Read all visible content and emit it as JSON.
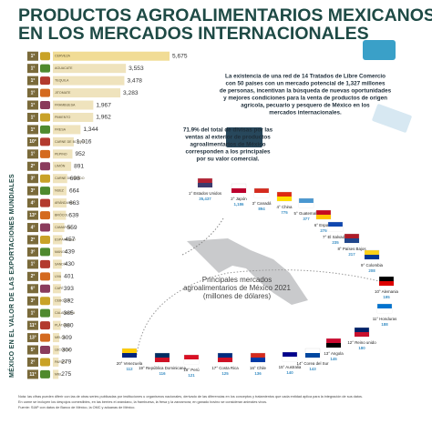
{
  "header": {
    "title_line1": "PRODUCTOS AGROALIMENTARIOS MEXICANOS",
    "title_line2": "EN LOS MERCADOS INTERNACIONALES"
  },
  "side_label": "MÉXICO EN EL VALOR DE LAS EXPORTACIONES MUNDIALES",
  "products": [
    {
      "rank": "1°",
      "name": "CERVEZA",
      "value": 5675,
      "value_label": "5,675"
    },
    {
      "rank": "1°",
      "name": "AGUACATE",
      "value": 3553,
      "value_label": "3,553"
    },
    {
      "rank": "1°",
      "name": "TEQUILA",
      "value": 3478,
      "value_label": "3,478"
    },
    {
      "rank": "1°",
      "name": "JITOMATE",
      "value": 3283,
      "value_label": "3,283"
    },
    {
      "rank": "1°",
      "name": "FRAMBUESA",
      "value": 1967,
      "value_label": "1,967"
    },
    {
      "rank": "1°",
      "name": "PIMIENTO",
      "value": 1962,
      "value_label": "1,962"
    },
    {
      "rank": "1°",
      "name": "FRESA",
      "value": 1344,
      "value_label": "1,344"
    },
    {
      "rank": "10°",
      "name": "CARNE DE BOVINO",
      "value": 1016,
      "value_label": "1,016"
    },
    {
      "rank": "1°",
      "name": "PEPINO",
      "value": 952,
      "value_label": "952"
    },
    {
      "rank": "2°",
      "name": "LIMÓN",
      "value": 891,
      "value_label": "891"
    },
    {
      "rank": "3°",
      "name": "CARNE DE CERDO",
      "value": 698,
      "value_label": "698"
    },
    {
      "rank": "3°",
      "name": "NUEZ",
      "value": 664,
      "value_label": "664"
    },
    {
      "rank": "4°",
      "name": "ARÁNDANO",
      "value": 663,
      "value_label": "663"
    },
    {
      "rank": "13°",
      "name": "BRÓCOLI",
      "value": 639,
      "value_label": "639"
    },
    {
      "rank": "4°",
      "name": "CAMARÓN",
      "value": 559,
      "value_label": "559"
    },
    {
      "rank": "2°",
      "name": "ESPÁRRAGO",
      "value": 457,
      "value_label": "457"
    },
    {
      "rank": "3°",
      "name": "MANGO",
      "value": 439,
      "value_label": "439"
    },
    {
      "rank": "1°",
      "name": "SANDÍA",
      "value": 430,
      "value_label": "430"
    },
    {
      "rank": "2°",
      "name": "UVA",
      "value": 401,
      "value_label": "401"
    },
    {
      "rank": "6°",
      "name": "CAFÉ",
      "value": 393,
      "value_label": "393"
    },
    {
      "rank": "3°",
      "name": "CEBOLLA",
      "value": 392,
      "value_label": "392"
    },
    {
      "rank": "1°",
      "name": "CALABACITA",
      "value": 385,
      "value_label": "385"
    },
    {
      "rank": "11°",
      "name": "PLÁTANO",
      "value": 380,
      "value_label": "380"
    },
    {
      "rank": "13°",
      "name": "MELÓN",
      "value": 309,
      "value_label": "309"
    },
    {
      "rank": "5°",
      "name": "LECHUGA",
      "value": 300,
      "value_label": "300"
    },
    {
      "rank": "2°",
      "name": "PAPAYA",
      "value": 279,
      "value_label": "279"
    },
    {
      "rank": "11°",
      "name": "MIEL",
      "value": 275,
      "value_label": "275"
    }
  ],
  "info_treaties": [
    "La existencia de una red de 14 Tratados de Libre Comercio",
    "con 50 países con un mercado potencial de 1,327 millones",
    "de personas, incentivan la búsqueda de nuevas oportunidades",
    "y mejores condiciones para la venta de productos de origen",
    "agrícola, pecuario y pesquero de México en los",
    "mercados internacionales."
  ],
  "info_share": [
    "71.9% del total de divisas por las",
    "ventas al exterior de productos",
    "agroalimentarios de México",
    "corresponden a los principales",
    "por su valor comercial."
  ],
  "markets_title": [
    "Principales mercados",
    "agroalimentarios de México 2021",
    "(millones de dólares)"
  ],
  "markets": [
    {
      "rank": "1°",
      "name": "Estados Unidos",
      "value_label": "35,437"
    },
    {
      "rank": "2°",
      "name": "Japón",
      "value_label": "1,186"
    },
    {
      "rank": "3°",
      "name": "Canadá",
      "value_label": "894"
    },
    {
      "rank": "4°",
      "name": "China",
      "value_label": "775"
    },
    {
      "rank": "5°",
      "name": "Guatemala",
      "value_label": "377"
    },
    {
      "rank": "6°",
      "name": "España",
      "value_label": "275"
    },
    {
      "rank": "7°",
      "name": "El Salvador",
      "value_label": "235"
    },
    {
      "rank": "8°",
      "name": "Países Bajos",
      "value_label": "217"
    },
    {
      "rank": "9°",
      "name": "Colombia",
      "value_label": "208"
    },
    {
      "rank": "10°",
      "name": "Alemania",
      "value_label": "195"
    },
    {
      "rank": "11°",
      "name": "Honduras",
      "value_label": "188"
    },
    {
      "rank": "12°",
      "name": "Reino unido",
      "value_label": "180"
    },
    {
      "rank": "13°",
      "name": "Angola",
      "value_label": "145"
    },
    {
      "rank": "14°",
      "name": "Corea del Sur",
      "value_label": "143"
    },
    {
      "rank": "15°",
      "name": "Australia",
      "value_label": "140"
    },
    {
      "rank": "16°",
      "name": "Chile",
      "value_label": "136"
    },
    {
      "rank": "17°",
      "name": "Costa Rica",
      "value_label": "125"
    },
    {
      "rank": "18°",
      "name": "Perú",
      "value_label": "121"
    },
    {
      "rank": "19°",
      "name": "República Dominicana",
      "value_label": "116"
    },
    {
      "rank": "20°",
      "name": "Venezuela",
      "value_label": "112"
    }
  ],
  "footnote": [
    "Nota: las cifras pueden diferir con las de otras series publicadas por instituciones u organismos nacionales, derivado de las diferencias en los conceptos y tratamientos que cada entidad aplica para la integración de sus datos.",
    "En carne se incluyen los despojos comestibles, en las berries el arándano, la frambuesa, la fresa y la zarzamora; en ganado bovino se consideran animales vivos.",
    "Fuente: SIAP con datos de Banco de México, la OMC y aduanas de México."
  ]
}
